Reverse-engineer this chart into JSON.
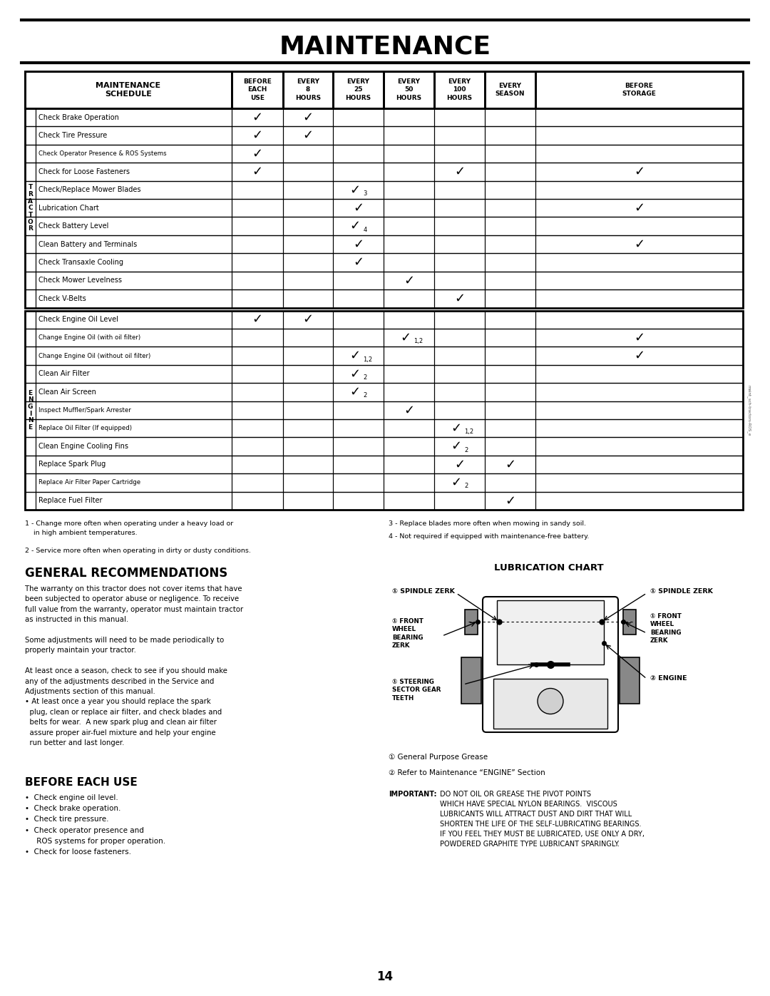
{
  "title": "MAINTENANCE",
  "page_num": "14",
  "tractor_rows": [
    {
      "item": "Check Brake Operation",
      "checks": [
        1,
        1,
        0,
        0,
        0,
        0,
        0
      ]
    },
    {
      "item": "Check Tire Pressure",
      "checks": [
        1,
        1,
        0,
        0,
        0,
        0,
        0
      ]
    },
    {
      "item": "Check Operator Presence & ROS Systems",
      "checks": [
        1,
        0,
        0,
        0,
        0,
        0,
        0
      ]
    },
    {
      "item": "Check for Loose Fasteners",
      "checks": [
        1,
        0,
        0,
        0,
        1,
        0,
        1
      ]
    },
    {
      "item": "Check/Replace Mower Blades",
      "checks": [
        0,
        0,
        "3",
        0,
        0,
        0,
        0
      ]
    },
    {
      "item": "Lubrication Chart",
      "checks": [
        0,
        0,
        1,
        0,
        0,
        0,
        1
      ]
    },
    {
      "item": "Check Battery Level",
      "checks": [
        0,
        0,
        "4",
        0,
        0,
        0,
        0
      ]
    },
    {
      "item": "Clean Battery and Terminals",
      "checks": [
        0,
        0,
        1,
        0,
        0,
        0,
        1
      ]
    },
    {
      "item": "Check Transaxle Cooling",
      "checks": [
        0,
        0,
        1,
        0,
        0,
        0,
        0
      ]
    },
    {
      "item": "Check Mower Levelness",
      "checks": [
        0,
        0,
        0,
        1,
        0,
        0,
        0
      ]
    },
    {
      "item": "Check V-Belts",
      "checks": [
        0,
        0,
        0,
        0,
        1,
        0,
        0
      ]
    }
  ],
  "engine_rows": [
    {
      "item": "Check Engine Oil Level",
      "checks": [
        1,
        1,
        0,
        0,
        0,
        0,
        0
      ]
    },
    {
      "item": "Change Engine Oil (with oil filter)",
      "checks": [
        0,
        0,
        0,
        "1,2",
        0,
        0,
        1
      ]
    },
    {
      "item": "Change Engine Oil (without oil filter)",
      "checks": [
        0,
        0,
        "1,2",
        0,
        0,
        0,
        1
      ]
    },
    {
      "item": "Clean Air Filter",
      "checks": [
        0,
        0,
        "2",
        0,
        0,
        0,
        0
      ]
    },
    {
      "item": "Clean Air Screen",
      "checks": [
        0,
        0,
        "2",
        0,
        0,
        0,
        0
      ]
    },
    {
      "item": "Inspect Muffler/Spark Arrester",
      "checks": [
        0,
        0,
        0,
        1,
        0,
        0,
        0
      ]
    },
    {
      "item": "Replace Oil Filter (If equipped)",
      "checks": [
        0,
        0,
        0,
        0,
        "1,2",
        0,
        0
      ]
    },
    {
      "item": "Clean Engine Cooling Fins",
      "checks": [
        0,
        0,
        0,
        0,
        "2",
        0,
        0
      ]
    },
    {
      "item": "Replace Spark Plug",
      "checks": [
        0,
        0,
        0,
        0,
        1,
        1,
        0
      ]
    },
    {
      "item": "Replace Air Filter Paper Cartridge",
      "checks": [
        0,
        0,
        0,
        0,
        "2",
        0,
        0
      ]
    },
    {
      "item": "Replace Fuel Filter",
      "checks": [
        0,
        0,
        0,
        0,
        0,
        1,
        0
      ]
    }
  ],
  "check_headers": [
    "BEFORE\nEACH\nUSE",
    "EVERY\n8\nHOURS",
    "EVERY\n25\nHOURS",
    "EVERY\n50\nHOURS",
    "EVERY\n100\nHOURS",
    "EVERY\nSEASON",
    "BEFORE\nSTORAGE"
  ],
  "fn1": "1 - Change more often when operating under a heavy load or\n    in high ambient temperatures.",
  "fn2": "2 - Service more often when operating in dirty or dusty conditions.",
  "fn3": "3 - Replace blades more often when mowing in sandy soil.",
  "fn4": "4 - Not required if equipped with maintenance-free battery.",
  "gen_title": "GENERAL RECOMMENDATIONS",
  "gen_body": "The warranty on this tractor does not cover items that have\nbeen subjected to operator abuse or negligence. To receive\nfull value from the warranty, operator must maintain tractor\nas instructed in this manual.\n\nSome adjustments will need to be made periodically to\nproperly maintain your tractor.\n\nAt least once a season, check to see if you should make\nany of the adjustments described in the Service and\nAdjustments section of this manual.\n• At least once a year you should replace the spark\n  plug, clean or replace air filter, and check blades and\n  belts for wear.  A new spark plug and clean air filter\n  assure proper air-fuel mixture and help your engine\n  run better and last longer.",
  "bef_title": "BEFORE EACH USE",
  "bef_items": "•  Check engine oil level.\n•  Check brake operation.\n•  Check tire pressure.\n•  Check operator presence and\n     ROS systems for proper operation.\n•  Check for loose fasteners.",
  "lub_title": "LUBRICATION CHART",
  "important_label": "IMPORTANT:",
  "important_body": "  DO NOT OIL OR GREASE THE PIVOT POINTS WHICH HAVE SPECIAL NYLON BEARINGS.  VISCOUS LUBRICANTS WILL ATTRACT DUST AND DIRT THAT WILL SHORTEN THE LIFE OF THE SELF-LUBRICATING BEARINGS. IF YOU FEEL THEY MUST BE LUBRICATED, USE ONLY A DRY, POWDERED GRAPHITE TYPE LUBRICANT SPARINGLY."
}
